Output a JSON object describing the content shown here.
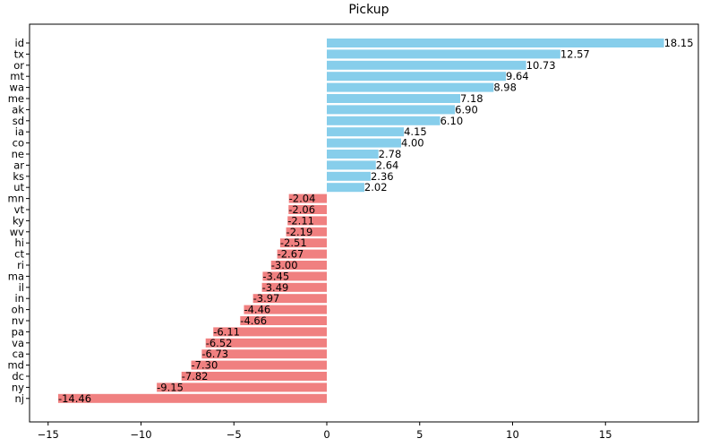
{
  "chart_data": {
    "type": "bar",
    "orientation": "horizontal",
    "title": "Pickup",
    "xlabel": "",
    "ylabel": "",
    "xlim": [
      -16,
      20
    ],
    "xticks": [
      -15,
      -10,
      -5,
      0,
      5,
      10,
      15
    ],
    "xtick_labels": [
      "−15",
      "−10",
      "−5",
      "0",
      "5",
      "10",
      "15"
    ],
    "grid": false,
    "positive_color": "#87ceeb",
    "negative_color": "#f08080",
    "categories": [
      "id",
      "tx",
      "or",
      "mt",
      "wa",
      "me",
      "ak",
      "sd",
      "ia",
      "co",
      "ne",
      "ar",
      "ks",
      "ut",
      "mn",
      "vt",
      "ky",
      "wv",
      "hi",
      "ct",
      "ri",
      "ma",
      "il",
      "in",
      "oh",
      "nv",
      "pa",
      "va",
      "ca",
      "md",
      "dc",
      "ny",
      "nj"
    ],
    "values": [
      18.15,
      12.57,
      10.73,
      9.64,
      8.98,
      7.18,
      6.9,
      6.1,
      4.15,
      4.0,
      2.78,
      2.64,
      2.36,
      2.02,
      -2.04,
      -2.06,
      -2.11,
      -2.19,
      -2.51,
      -2.67,
      -3.0,
      -3.45,
      -3.49,
      -3.97,
      -4.46,
      -4.66,
      -6.11,
      -6.52,
      -6.73,
      -7.3,
      -7.82,
      -9.15,
      -14.46
    ],
    "value_labels": [
      "18.15",
      "12.57",
      "10.73",
      "9.64",
      "8.98",
      "7.18",
      "6.90",
      "6.10",
      "4.15",
      "4.00",
      "2.78",
      "2.64",
      "2.36",
      "2.02",
      "-2.04",
      "-2.06",
      "-2.11",
      "-2.19",
      "-2.51",
      "-2.67",
      "-3.00",
      "-3.45",
      "-3.49",
      "-3.97",
      "-4.46",
      "-4.66",
      "-6.11",
      "-6.52",
      "-6.73",
      "-7.30",
      "-7.82",
      "-9.15",
      "-14.46"
    ]
  }
}
